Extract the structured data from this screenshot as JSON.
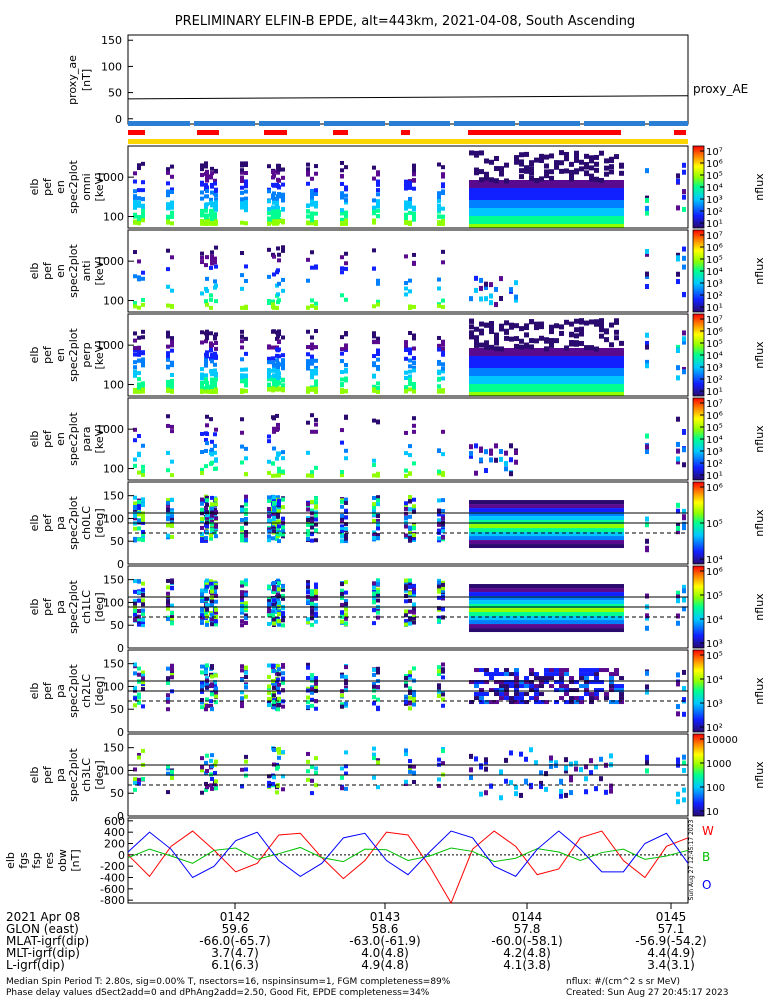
{
  "title": "PRELIMINARY ELFIN-B EPDE, alt=443km, 2021-04-08, South Ascending",
  "colors": {
    "bar_blue": "#2a7fd4",
    "bar_red": "#ff0000",
    "bar_yellow": "#ffd700",
    "line_w": "#ff0000",
    "line_b": "#00c000",
    "line_o": "#0000ff"
  },
  "chart_data": [
    {
      "type": "line",
      "name": "proxy_ae",
      "ylabel": "proxy_ae [nT]",
      "legend": "proxy_AE",
      "ylim": [
        -10,
        160
      ],
      "yticks": [
        "150",
        "100",
        "50",
        "0"
      ],
      "x": [
        0,
        1
      ],
      "values": [
        38,
        44
      ]
    },
    {
      "type": "heatmap",
      "name": "elb_pef_en_spec2plot_omni",
      "ylabel": [
        "elb",
        "pef",
        "en",
        "spec2plot",
        "omni",
        "[keV]"
      ],
      "yticks": [
        "1000",
        "100"
      ],
      "colorbar_label": "nflux",
      "colorbar_ticks": [
        "10⁷",
        "10⁶",
        "10⁵",
        "10⁴",
        "10³",
        "10²",
        "10¹"
      ]
    },
    {
      "type": "heatmap",
      "name": "elb_pef_en_spec2plot_anti",
      "ylabel": [
        "elb",
        "pef",
        "en",
        "spec2plot",
        "anti",
        "[keV]"
      ],
      "yticks": [
        "1000",
        "100"
      ],
      "colorbar_label": "nflux",
      "colorbar_ticks": [
        "10⁷",
        "10⁶",
        "10⁵",
        "10⁴",
        "10³",
        "10²",
        "10¹"
      ]
    },
    {
      "type": "heatmap",
      "name": "elb_pef_en_spec2plot_perp",
      "ylabel": [
        "elb",
        "pef",
        "en",
        "spec2plot",
        "perp",
        "[keV]"
      ],
      "yticks": [
        "1000",
        "100"
      ],
      "colorbar_label": "nflux",
      "colorbar_ticks": [
        "10⁷",
        "10⁶",
        "10⁵",
        "10⁴",
        "10³",
        "10²",
        "10¹"
      ]
    },
    {
      "type": "heatmap",
      "name": "elb_pef_en_spec2plot_para",
      "ylabel": [
        "elb",
        "pef",
        "en",
        "spec2plot",
        "para",
        "[keV]"
      ],
      "yticks": [
        "1000",
        "100"
      ],
      "colorbar_label": "nflux",
      "colorbar_ticks": [
        "10⁷",
        "10⁶",
        "10⁵",
        "10⁴",
        "10³",
        "10²",
        "10¹"
      ]
    },
    {
      "type": "heatmap",
      "name": "elb_pef_pa_spec2plot_ch0LC",
      "ylabel": [
        "elb",
        "pef",
        "pa",
        "spec2plot",
        "ch0LC",
        "[deg]"
      ],
      "yticks": [
        "150",
        "100",
        "50",
        "0"
      ],
      "colorbar_label": "nflux",
      "colorbar_ticks": [
        "10⁶",
        "10⁵",
        "10⁴"
      ]
    },
    {
      "type": "heatmap",
      "name": "elb_pef_pa_spec2plot_ch1LC",
      "ylabel": [
        "elb",
        "pef",
        "pa",
        "spec2plot",
        "ch1LC",
        "[deg]"
      ],
      "yticks": [
        "150",
        "100",
        "50",
        "0"
      ],
      "colorbar_label": "nflux",
      "colorbar_ticks": [
        "10⁶",
        "10⁵",
        "10⁴",
        "10³"
      ]
    },
    {
      "type": "heatmap",
      "name": "elb_pef_pa_spec2plot_ch2LC",
      "ylabel": [
        "elb",
        "pef",
        "pa",
        "spec2plot",
        "ch2LC",
        "[deg]"
      ],
      "yticks": [
        "150",
        "100",
        "50",
        "0"
      ],
      "colorbar_label": "nflux",
      "colorbar_ticks": [
        "10⁵",
        "10⁴",
        "10³",
        "10²"
      ]
    },
    {
      "type": "heatmap",
      "name": "elb_pef_pa_spec2plot_ch3LC",
      "ylabel": [
        "elb",
        "pef",
        "pa",
        "spec2plot",
        "ch3LC",
        "[deg]"
      ],
      "yticks": [
        "150",
        "100",
        "50",
        "0"
      ],
      "colorbar_label": "nflux",
      "colorbar_ticks": [
        "10000",
        "1000",
        "100",
        "10"
      ]
    },
    {
      "type": "line",
      "name": "elb_fgs_fsp_res_obw",
      "ylabel": [
        "elb",
        "fgs",
        "fsp",
        "res",
        "obw",
        "[nT]"
      ],
      "yticks": [
        "600",
        "400",
        "200",
        "0",
        "-200",
        "-400",
        "-600",
        "-800"
      ],
      "ylim": [
        -850,
        650
      ],
      "legend": [
        "W",
        "B",
        "O"
      ],
      "side_text": "Sun Aug 27 12:45:17 2023",
      "series": [
        {
          "name": "W",
          "values": [
            0,
            -380,
            150,
            420,
            80,
            -300,
            -150,
            350,
            380,
            -50,
            -420,
            -100,
            400,
            350,
            -200,
            -850,
            100,
            420,
            150,
            -350,
            -250,
            300,
            420,
            -100,
            -400,
            150,
            300
          ]
        },
        {
          "name": "B",
          "values": [
            -50,
            100,
            -20,
            -150,
            80,
            120,
            -80,
            20,
            130,
            -50,
            -120,
            100,
            90,
            -100,
            -20,
            120,
            60,
            -120,
            -60,
            110,
            50,
            -100,
            40,
            100,
            -80,
            -20,
            80
          ]
        },
        {
          "name": "O",
          "values": [
            50,
            400,
            100,
            -400,
            -200,
            250,
            400,
            -100,
            -380,
            -150,
            300,
            380,
            -100,
            -350,
            50,
            420,
            300,
            -200,
            -380,
            100,
            420,
            100,
            -300,
            -300,
            200,
            380,
            -150
          ]
        }
      ]
    }
  ],
  "orbit_table": {
    "row_labels": [
      "2021 Apr 08",
      "GLON (east)",
      "MLAT-igrf(dip)",
      "MLT-igrf(dip)",
      "L-igrf(dip)"
    ],
    "columns": [
      {
        "time": "0142",
        "glon": "59.6",
        "mlat": "-66.0(-65.7)",
        "mlt": "3.7(4.7)",
        "l": "6.1(6.3)"
      },
      {
        "time": "0143",
        "glon": "58.6",
        "mlat": "-63.0(-61.9)",
        "mlt": "4.0(4.8)",
        "l": "4.9(4.8)"
      },
      {
        "time": "0144",
        "glon": "57.8",
        "mlat": "-60.0(-58.1)",
        "mlt": "4.2(4.8)",
        "l": "4.1(3.8)"
      },
      {
        "time": "0145",
        "glon": "57.1",
        "mlat": "-56.9(-54.2)",
        "mlt": "4.4(4.9)",
        "l": "3.4(3.1)"
      }
    ]
  },
  "footer": {
    "line1": "Median Spin Period T: 2.80s, sig=0.00% T, nsectors=16, nspinsinsum=1, FGM completeness=89%",
    "line2": "Phase delay values dSect2add=0 and dPhAng2add=2.50, Good Fit, EPDE completeness=34%",
    "right1": "nflux: #/(cm^2 s sr MeV)",
    "right2": "Created: Sun Aug 27 20:45:17 2023"
  }
}
